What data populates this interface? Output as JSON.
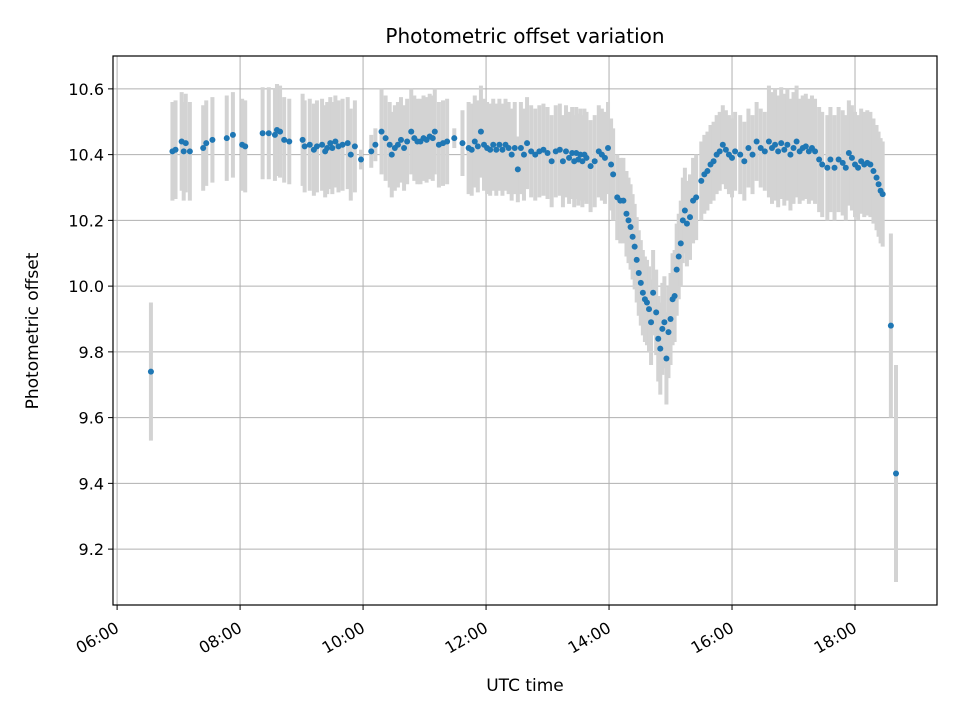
{
  "chart_data": {
    "type": "scatter",
    "title": "Photometric offset variation",
    "xlabel": "UTC time",
    "ylabel": "Photometric offset",
    "x_ticks": [
      "06:00",
      "08:00",
      "10:00",
      "12:00",
      "14:00",
      "16:00",
      "18:00"
    ],
    "y_ticks": [
      "9.2",
      "9.4",
      "9.6",
      "9.8",
      "10.0",
      "10.2",
      "10.4",
      "10.6"
    ],
    "xlim": [
      "05:56",
      "19:20"
    ],
    "ylim": [
      9.03,
      10.7
    ],
    "grid": true,
    "colors": {
      "point": "#1f77b4",
      "errorbar": "#d3d3d3",
      "grid": "#b0b0b0"
    },
    "points": [
      {
        "t": "06:33",
        "y": 9.74,
        "err": 0.21
      },
      {
        "t": "06:54",
        "y": 10.41,
        "err": 0.15
      },
      {
        "t": "06:57",
        "y": 10.415,
        "err": 0.15
      },
      {
        "t": "07:03",
        "y": 10.44,
        "err": 0.15
      },
      {
        "t": "07:05",
        "y": 10.41,
        "err": 0.15
      },
      {
        "t": "07:07",
        "y": 10.435,
        "err": 0.15
      },
      {
        "t": "07:11",
        "y": 10.41,
        "err": 0.15
      },
      {
        "t": "07:24",
        "y": 10.42,
        "err": 0.13
      },
      {
        "t": "07:27",
        "y": 10.435,
        "err": 0.13
      },
      {
        "t": "07:33",
        "y": 10.445,
        "err": 0.13
      },
      {
        "t": "07:47",
        "y": 10.45,
        "err": 0.13
      },
      {
        "t": "07:53",
        "y": 10.46,
        "err": 0.13
      },
      {
        "t": "08:02",
        "y": 10.43,
        "err": 0.14
      },
      {
        "t": "08:05",
        "y": 10.425,
        "err": 0.14
      },
      {
        "t": "08:22",
        "y": 10.465,
        "err": 0.14
      },
      {
        "t": "08:28",
        "y": 10.465,
        "err": 0.14
      },
      {
        "t": "08:34",
        "y": 10.46,
        "err": 0.14
      },
      {
        "t": "08:36",
        "y": 10.475,
        "err": 0.14
      },
      {
        "t": "08:39",
        "y": 10.47,
        "err": 0.14
      },
      {
        "t": "08:43",
        "y": 10.445,
        "err": 0.13
      },
      {
        "t": "08:48",
        "y": 10.44,
        "err": 0.13
      },
      {
        "t": "09:01",
        "y": 10.445,
        "err": 0.14
      },
      {
        "t": "09:03",
        "y": 10.425,
        "err": 0.14
      },
      {
        "t": "09:08",
        "y": 10.43,
        "err": 0.14
      },
      {
        "t": "09:12",
        "y": 10.415,
        "err": 0.14
      },
      {
        "t": "09:15",
        "y": 10.425,
        "err": 0.14
      },
      {
        "t": "09:20",
        "y": 10.43,
        "err": 0.14
      },
      {
        "t": "09:23",
        "y": 10.41,
        "err": 0.14
      },
      {
        "t": "09:25",
        "y": 10.42,
        "err": 0.14
      },
      {
        "t": "09:28",
        "y": 10.435,
        "err": 0.14
      },
      {
        "t": "09:30",
        "y": 10.42,
        "err": 0.14
      },
      {
        "t": "09:33",
        "y": 10.44,
        "err": 0.14
      },
      {
        "t": "09:36",
        "y": 10.425,
        "err": 0.14
      },
      {
        "t": "09:40",
        "y": 10.43,
        "err": 0.14
      },
      {
        "t": "09:45",
        "y": 10.435,
        "err": 0.14
      },
      {
        "t": "09:48",
        "y": 10.4,
        "err": 0.14
      },
      {
        "t": "09:52",
        "y": 10.425,
        "err": 0.14
      },
      {
        "t": "09:58",
        "y": 10.385,
        "err": 0.03
      },
      {
        "t": "10:08",
        "y": 10.41,
        "err": 0.05
      },
      {
        "t": "10:12",
        "y": 10.43,
        "err": 0.05
      },
      {
        "t": "10:18",
        "y": 10.47,
        "err": 0.13
      },
      {
        "t": "10:22",
        "y": 10.45,
        "err": 0.13
      },
      {
        "t": "10:26",
        "y": 10.43,
        "err": 0.13
      },
      {
        "t": "10:28",
        "y": 10.4,
        "err": 0.13
      },
      {
        "t": "10:31",
        "y": 10.42,
        "err": 0.13
      },
      {
        "t": "10:34",
        "y": 10.43,
        "err": 0.13
      },
      {
        "t": "10:37",
        "y": 10.445,
        "err": 0.13
      },
      {
        "t": "10:40",
        "y": 10.42,
        "err": 0.13
      },
      {
        "t": "10:43",
        "y": 10.44,
        "err": 0.13
      },
      {
        "t": "10:47",
        "y": 10.47,
        "err": 0.13
      },
      {
        "t": "10:50",
        "y": 10.45,
        "err": 0.13
      },
      {
        "t": "10:53",
        "y": 10.44,
        "err": 0.13
      },
      {
        "t": "10:56",
        "y": 10.44,
        "err": 0.13
      },
      {
        "t": "10:59",
        "y": 10.45,
        "err": 0.13
      },
      {
        "t": "11:02",
        "y": 10.445,
        "err": 0.13
      },
      {
        "t": "11:05",
        "y": 10.455,
        "err": 0.13
      },
      {
        "t": "11:08",
        "y": 10.45,
        "err": 0.13
      },
      {
        "t": "11:10",
        "y": 10.47,
        "err": 0.13
      },
      {
        "t": "11:14",
        "y": 10.43,
        "err": 0.13
      },
      {
        "t": "11:18",
        "y": 10.435,
        "err": 0.13
      },
      {
        "t": "11:22",
        "y": 10.44,
        "err": 0.13
      },
      {
        "t": "11:29",
        "y": 10.45,
        "err": 0.03
      },
      {
        "t": "11:37",
        "y": 10.435,
        "err": 0.1
      },
      {
        "t": "11:43",
        "y": 10.42,
        "err": 0.14
      },
      {
        "t": "11:46",
        "y": 10.415,
        "err": 0.14
      },
      {
        "t": "11:49",
        "y": 10.44,
        "err": 0.14
      },
      {
        "t": "11:52",
        "y": 10.425,
        "err": 0.14
      },
      {
        "t": "11:55",
        "y": 10.47,
        "err": 0.14
      },
      {
        "t": "11:58",
        "y": 10.43,
        "err": 0.14
      },
      {
        "t": "12:01",
        "y": 10.42,
        "err": 0.14
      },
      {
        "t": "12:04",
        "y": 10.415,
        "err": 0.14
      },
      {
        "t": "12:07",
        "y": 10.43,
        "err": 0.14
      },
      {
        "t": "12:10",
        "y": 10.415,
        "err": 0.14
      },
      {
        "t": "12:13",
        "y": 10.43,
        "err": 0.14
      },
      {
        "t": "12:16",
        "y": 10.415,
        "err": 0.14
      },
      {
        "t": "12:19",
        "y": 10.43,
        "err": 0.14
      },
      {
        "t": "12:22",
        "y": 10.42,
        "err": 0.14
      },
      {
        "t": "12:25",
        "y": 10.4,
        "err": 0.14
      },
      {
        "t": "12:28",
        "y": 10.42,
        "err": 0.14
      },
      {
        "t": "12:31",
        "y": 10.355,
        "err": 0.1
      },
      {
        "t": "12:34",
        "y": 10.42,
        "err": 0.14
      },
      {
        "t": "12:37",
        "y": 10.4,
        "err": 0.14
      },
      {
        "t": "12:40",
        "y": 10.435,
        "err": 0.14
      },
      {
        "t": "12:44",
        "y": 10.41,
        "err": 0.14
      },
      {
        "t": "12:48",
        "y": 10.4,
        "err": 0.14
      },
      {
        "t": "12:52",
        "y": 10.41,
        "err": 0.14
      },
      {
        "t": "12:56",
        "y": 10.415,
        "err": 0.14
      },
      {
        "t": "13:00",
        "y": 10.405,
        "err": 0.14
      },
      {
        "t": "13:04",
        "y": 10.38,
        "err": 0.14
      },
      {
        "t": "13:08",
        "y": 10.41,
        "err": 0.14
      },
      {
        "t": "13:12",
        "y": 10.415,
        "err": 0.14
      },
      {
        "t": "13:15",
        "y": 10.38,
        "err": 0.14
      },
      {
        "t": "13:18",
        "y": 10.41,
        "err": 0.14
      },
      {
        "t": "13:21",
        "y": 10.39,
        "err": 0.14
      },
      {
        "t": "13:24",
        "y": 10.405,
        "err": 0.14
      },
      {
        "t": "13:26",
        "y": 10.38,
        "err": 0.14
      },
      {
        "t": "13:28",
        "y": 10.405,
        "err": 0.14
      },
      {
        "t": "13:30",
        "y": 10.385,
        "err": 0.14
      },
      {
        "t": "13:32",
        "y": 10.4,
        "err": 0.14
      },
      {
        "t": "13:34",
        "y": 10.38,
        "err": 0.14
      },
      {
        "t": "13:36",
        "y": 10.4,
        "err": 0.14
      },
      {
        "t": "13:38",
        "y": 10.39,
        "err": 0.14
      },
      {
        "t": "13:42",
        "y": 10.365,
        "err": 0.14
      },
      {
        "t": "13:46",
        "y": 10.38,
        "err": 0.14
      },
      {
        "t": "13:50",
        "y": 10.41,
        "err": 0.14
      },
      {
        "t": "13:53",
        "y": 10.4,
        "err": 0.14
      },
      {
        "t": "13:56",
        "y": 10.39,
        "err": 0.14
      },
      {
        "t": "13:59",
        "y": 10.42,
        "err": 0.14
      },
      {
        "t": "14:02",
        "y": 10.37,
        "err": 0.14
      },
      {
        "t": "14:04",
        "y": 10.34,
        "err": 0.14
      },
      {
        "t": "14:08",
        "y": 10.27,
        "err": 0.13
      },
      {
        "t": "14:11",
        "y": 10.26,
        "err": 0.13
      },
      {
        "t": "14:14",
        "y": 10.26,
        "err": 0.13
      },
      {
        "t": "14:17",
        "y": 10.22,
        "err": 0.13
      },
      {
        "t": "14:19",
        "y": 10.2,
        "err": 0.13
      },
      {
        "t": "14:21",
        "y": 10.18,
        "err": 0.13
      },
      {
        "t": "14:23",
        "y": 10.15,
        "err": 0.13
      },
      {
        "t": "14:25",
        "y": 10.12,
        "err": 0.13
      },
      {
        "t": "14:27",
        "y": 10.08,
        "err": 0.13
      },
      {
        "t": "14:29",
        "y": 10.04,
        "err": 0.13
      },
      {
        "t": "14:31",
        "y": 10.01,
        "err": 0.13
      },
      {
        "t": "14:33",
        "y": 9.98,
        "err": 0.13
      },
      {
        "t": "14:35",
        "y": 9.96,
        "err": 0.13
      },
      {
        "t": "14:37",
        "y": 9.95,
        "err": 0.13
      },
      {
        "t": "14:39",
        "y": 9.93,
        "err": 0.13
      },
      {
        "t": "14:41",
        "y": 9.89,
        "err": 0.13
      },
      {
        "t": "14:43",
        "y": 9.98,
        "err": 0.13
      },
      {
        "t": "14:46",
        "y": 9.92,
        "err": 0.13
      },
      {
        "t": "14:48",
        "y": 9.84,
        "err": 0.13
      },
      {
        "t": "14:50",
        "y": 9.81,
        "err": 0.14
      },
      {
        "t": "14:52",
        "y": 9.87,
        "err": 0.14
      },
      {
        "t": "14:54",
        "y": 9.89,
        "err": 0.14
      },
      {
        "t": "14:56",
        "y": 9.78,
        "err": 0.14
      },
      {
        "t": "14:58",
        "y": 9.86,
        "err": 0.14
      },
      {
        "t": "15:00",
        "y": 9.9,
        "err": 0.14
      },
      {
        "t": "15:02",
        "y": 9.96,
        "err": 0.14
      },
      {
        "t": "15:04",
        "y": 9.97,
        "err": 0.14
      },
      {
        "t": "15:06",
        "y": 10.05,
        "err": 0.14
      },
      {
        "t": "15:08",
        "y": 10.09,
        "err": 0.13
      },
      {
        "t": "15:10",
        "y": 10.13,
        "err": 0.13
      },
      {
        "t": "15:12",
        "y": 10.2,
        "err": 0.13
      },
      {
        "t": "15:14",
        "y": 10.23,
        "err": 0.13
      },
      {
        "t": "15:16",
        "y": 10.19,
        "err": 0.13
      },
      {
        "t": "15:19",
        "y": 10.21,
        "err": 0.13
      },
      {
        "t": "15:22",
        "y": 10.26,
        "err": 0.13
      },
      {
        "t": "15:25",
        "y": 10.27,
        "err": 0.13
      },
      {
        "t": "15:30",
        "y": 10.32,
        "err": 0.12
      },
      {
        "t": "15:33",
        "y": 10.34,
        "err": 0.12
      },
      {
        "t": "15:36",
        "y": 10.35,
        "err": 0.12
      },
      {
        "t": "15:39",
        "y": 10.37,
        "err": 0.12
      },
      {
        "t": "15:42",
        "y": 10.38,
        "err": 0.12
      },
      {
        "t": "15:45",
        "y": 10.4,
        "err": 0.12
      },
      {
        "t": "15:48",
        "y": 10.41,
        "err": 0.12
      },
      {
        "t": "15:51",
        "y": 10.43,
        "err": 0.12
      },
      {
        "t": "15:54",
        "y": 10.415,
        "err": 0.12
      },
      {
        "t": "15:57",
        "y": 10.4,
        "err": 0.12
      },
      {
        "t": "16:00",
        "y": 10.39,
        "err": 0.12
      },
      {
        "t": "16:03",
        "y": 10.41,
        "err": 0.12
      },
      {
        "t": "16:08",
        "y": 10.4,
        "err": 0.12
      },
      {
        "t": "16:12",
        "y": 10.38,
        "err": 0.12
      },
      {
        "t": "16:16",
        "y": 10.42,
        "err": 0.12
      },
      {
        "t": "16:20",
        "y": 10.4,
        "err": 0.12
      },
      {
        "t": "16:24",
        "y": 10.44,
        "err": 0.12
      },
      {
        "t": "16:28",
        "y": 10.42,
        "err": 0.12
      },
      {
        "t": "16:32",
        "y": 10.41,
        "err": 0.12
      },
      {
        "t": "16:36",
        "y": 10.44,
        "err": 0.17
      },
      {
        "t": "16:39",
        "y": 10.42,
        "err": 0.17
      },
      {
        "t": "16:42",
        "y": 10.43,
        "err": 0.17
      },
      {
        "t": "16:45",
        "y": 10.41,
        "err": 0.17
      },
      {
        "t": "16:48",
        "y": 10.435,
        "err": 0.17
      },
      {
        "t": "16:51",
        "y": 10.415,
        "err": 0.17
      },
      {
        "t": "16:54",
        "y": 10.43,
        "err": 0.17
      },
      {
        "t": "16:57",
        "y": 10.4,
        "err": 0.17
      },
      {
        "t": "17:00",
        "y": 10.42,
        "err": 0.17
      },
      {
        "t": "17:03",
        "y": 10.44,
        "err": 0.17
      },
      {
        "t": "17:06",
        "y": 10.41,
        "err": 0.16
      },
      {
        "t": "17:09",
        "y": 10.42,
        "err": 0.16
      },
      {
        "t": "17:12",
        "y": 10.425,
        "err": 0.16
      },
      {
        "t": "17:15",
        "y": 10.41,
        "err": 0.16
      },
      {
        "t": "17:18",
        "y": 10.42,
        "err": 0.16
      },
      {
        "t": "17:21",
        "y": 10.41,
        "err": 0.16
      },
      {
        "t": "17:25",
        "y": 10.385,
        "err": 0.16
      },
      {
        "t": "17:28",
        "y": 10.37,
        "err": 0.16
      },
      {
        "t": "17:33",
        "y": 10.36,
        "err": 0.16
      },
      {
        "t": "17:36",
        "y": 10.385,
        "err": 0.16
      },
      {
        "t": "17:40",
        "y": 10.36,
        "err": 0.16
      },
      {
        "t": "17:44",
        "y": 10.385,
        "err": 0.16
      },
      {
        "t": "17:48",
        "y": 10.375,
        "err": 0.16
      },
      {
        "t": "17:51",
        "y": 10.36,
        "err": 0.16
      },
      {
        "t": "17:54",
        "y": 10.405,
        "err": 0.16
      },
      {
        "t": "17:57",
        "y": 10.39,
        "err": 0.16
      },
      {
        "t": "18:00",
        "y": 10.37,
        "err": 0.16
      },
      {
        "t": "18:03",
        "y": 10.36,
        "err": 0.16
      },
      {
        "t": "18:06",
        "y": 10.38,
        "err": 0.16
      },
      {
        "t": "18:09",
        "y": 10.37,
        "err": 0.16
      },
      {
        "t": "18:12",
        "y": 10.375,
        "err": 0.16
      },
      {
        "t": "18:15",
        "y": 10.37,
        "err": 0.16
      },
      {
        "t": "18:18",
        "y": 10.35,
        "err": 0.16
      },
      {
        "t": "18:21",
        "y": 10.33,
        "err": 0.16
      },
      {
        "t": "18:23",
        "y": 10.31,
        "err": 0.16
      },
      {
        "t": "18:25",
        "y": 10.29,
        "err": 0.16
      },
      {
        "t": "18:27",
        "y": 10.28,
        "err": 0.16
      },
      {
        "t": "18:35",
        "y": 9.88,
        "err": 0.28
      },
      {
        "t": "18:40",
        "y": 9.43,
        "err": 0.33
      }
    ]
  }
}
